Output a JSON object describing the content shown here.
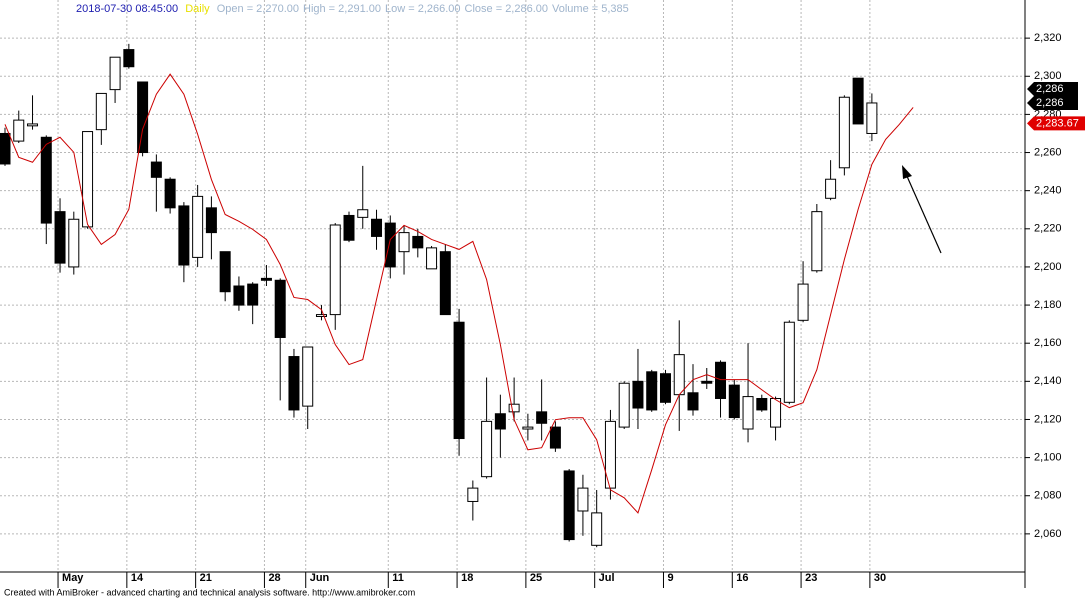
{
  "chart_data": {
    "type": "candlestick",
    "header": {
      "date": "2018-07-30 08:45:00",
      "interval": "Daily",
      "fields": [
        "Open = 2,270.00",
        "High = 2,291.00",
        "Low = 2,266.00",
        "Close = 2,286.00",
        "Volume = 5,385"
      ]
    },
    "footer": "Created with AmiBroker - advanced charting and technical analysis software. http://www.amibroker.com",
    "categories": [
      null,
      null,
      null,
      null,
      "May",
      null,
      null,
      null,
      null,
      "14",
      null,
      null,
      null,
      null,
      "21",
      null,
      null,
      null,
      null,
      "28",
      null,
      null,
      "Jun",
      null,
      null,
      null,
      null,
      null,
      "11",
      null,
      null,
      null,
      null,
      "18",
      null,
      null,
      null,
      null,
      "25",
      null,
      null,
      null,
      null,
      "Jul",
      null,
      null,
      null,
      null,
      "9",
      null,
      null,
      null,
      null,
      "16",
      null,
      null,
      null,
      null,
      "23",
      null,
      null,
      null,
      null,
      "30",
      null,
      null,
      null
    ],
    "open": [
      2270,
      2266,
      2274,
      2268,
      2229,
      2200,
      2221,
      2272,
      2293,
      2314,
      2297,
      2255,
      2246,
      2232,
      2205,
      2231,
      2208,
      2190,
      2191,
      2194,
      2193,
      2153,
      2127,
      2174,
      2175,
      2227,
      2226,
      2225,
      2223,
      2208,
      2216,
      2199,
      2208,
      2171,
      2077,
      2090,
      2123,
      2124,
      2115,
      2124,
      2116,
      2093,
      2072,
      2054,
      2084,
      2116,
      2140,
      2145,
      2144,
      2133,
      2134,
      2140,
      2150,
      2138,
      2115,
      2131,
      2116,
      2129,
      2172,
      2198,
      2236,
      2252,
      2299,
      2270,
      null,
      null,
      null
    ],
    "high": [
      2273,
      2282,
      2290,
      2269,
      2236,
      2229,
      2271,
      2291,
      2310,
      2317,
      2297,
      2259,
      2247,
      2234,
      2243,
      2237,
      2208,
      2195,
      2192,
      2201,
      2194,
      2157,
      2158,
      2180,
      2223,
      2229,
      2253,
      2230,
      2227,
      2222,
      2220,
      2211,
      2212,
      2178,
      2088,
      2142,
      2133,
      2142,
      2123,
      2141,
      2119,
      2094,
      2091,
      2083,
      2125,
      2140,
      2157,
      2146,
      2146,
      2172,
      2149,
      2147,
      2151,
      2141,
      2160,
      2133,
      2132,
      2172,
      2203,
      2233,
      2256,
      2290,
      2299,
      2291,
      null,
      null,
      null
    ],
    "low": [
      2253,
      2265,
      2272,
      2212,
      2197,
      2196,
      2220,
      2264,
      2286,
      2304,
      2258,
      2229,
      2228,
      2192,
      2200,
      2204,
      2182,
      2177,
      2170,
      2190,
      2130,
      2121,
      2115,
      2172,
      2167,
      2213,
      2220,
      2209,
      2194,
      2196,
      2205,
      2199,
      2175,
      2101,
      2067,
      2089,
      2100,
      2119,
      2109,
      2109,
      2103,
      2056,
      2059,
      2053,
      2078,
      2115,
      2115,
      2124,
      2128,
      2114,
      2122,
      2136,
      2121,
      2120,
      2108,
      2124,
      2109,
      2128,
      2171,
      2197,
      2235,
      2248,
      2275,
      2266,
      null,
      null,
      null
    ],
    "close": [
      2254,
      2277,
      2275,
      2223,
      2202,
      2225,
      2271,
      2291,
      2310,
      2305,
      2260,
      2247,
      2231,
      2201,
      2237,
      2218,
      2187,
      2180,
      2180,
      2193,
      2163,
      2125,
      2158,
      2175,
      2222,
      2214,
      2230,
      2216,
      2200,
      2218,
      2210,
      2210,
      2175,
      2110,
      2084,
      2119,
      2115,
      2128,
      2116,
      2118,
      2105,
      2057,
      2084,
      2071,
      2119,
      2139,
      2126,
      2125,
      2129,
      2154,
      2125,
      2139,
      2131,
      2121,
      2132,
      2125,
      2131,
      2171,
      2191,
      2229,
      2246,
      2289,
      2275,
      2286,
      null,
      null,
      null
    ],
    "up_color": "#ffffff",
    "down_color": "#000000",
    "series": [
      {
        "color": "#cc0000",
        "values": [
          2274.8,
          2257.5,
          2254.9,
          2264.3,
          2268,
          2260.1,
          2222.3,
          2211.8,
          2217,
          2230.2,
          2272.2,
          2290.6,
          2301.1,
          2290.6,
          2269.6,
          2245.9,
          2227.5,
          2223.9,
          2219.7,
          2214.4,
          2201.3,
          2184,
          2182.9,
          2177.6,
          2159.3,
          2148.8,
          2151.4,
          2182.9,
          2214.4,
          2221.8,
          2218.6,
          2214.4,
          2211.8,
          2209.2,
          2213.4,
          2193.4,
          2159.3,
          2119.9,
          2104.1,
          2105.2,
          2119.9,
          2120.9,
          2120.9,
          2109.4,
          2083.1,
          2078.9,
          2071,
          2093.6,
          2117.2,
          2133,
          2140.9,
          2143.5,
          2140.9,
          2140.9,
          2140.9,
          2135.6,
          2130.4,
          2126.2,
          2128.8,
          2146.1,
          2175,
          2203.9,
          2230.2,
          2253.8,
          2266.9,
          2274.8,
          2283.67
        ]
      }
    ],
    "price_labels": [
      {
        "value": 2286,
        "label": "2,286",
        "color": "#000000"
      },
      {
        "value": 2286,
        "label": "2,286",
        "color": "#000000"
      },
      {
        "value": 2283.67,
        "label": "2,283.67",
        "color": "#e00000"
      }
    ],
    "ylim": [
      2040,
      2340
    ],
    "yticks": [
      {
        "value": 2060,
        "label": "2,060"
      },
      {
        "value": 2080,
        "label": "2,080"
      },
      {
        "value": 2100,
        "label": "2,100"
      },
      {
        "value": 2120,
        "label": "2,120"
      },
      {
        "value": 2140,
        "label": "2,140"
      },
      {
        "value": 2160,
        "label": "2,160"
      },
      {
        "value": 2180,
        "label": "2,180"
      },
      {
        "value": 2200,
        "label": "2,200"
      },
      {
        "value": 2220,
        "label": "2,220"
      },
      {
        "value": 2240,
        "label": "2,240"
      },
      {
        "value": 2260,
        "label": "2,260"
      },
      {
        "value": 2280,
        "label": "2,280"
      },
      {
        "value": 2300,
        "label": "2,300"
      },
      {
        "value": 2320,
        "label": "2,320"
      }
    ],
    "grid": true
  }
}
